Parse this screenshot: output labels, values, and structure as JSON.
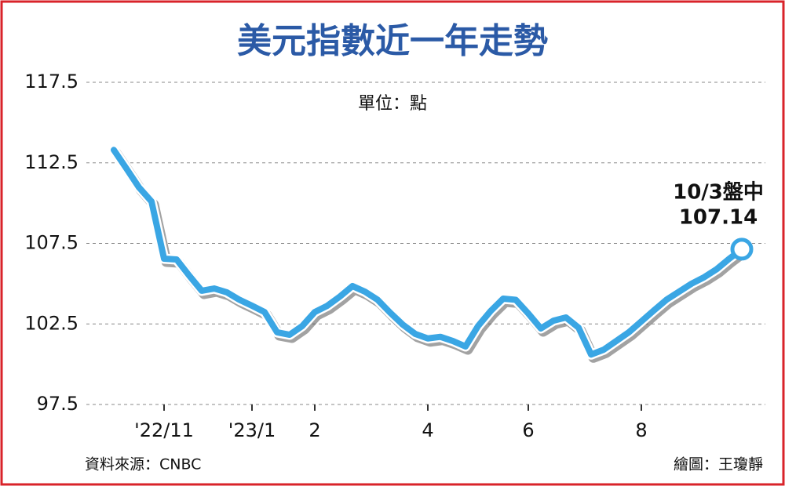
{
  "chart_data": {
    "type": "line",
    "title": "美元指數近一年走勢",
    "unit_label": "單位：點",
    "source": "資料來源：CNBC",
    "credit": "繪圖：王瓊靜",
    "annotation": "10/3盤中",
    "color": "#3aa6e4",
    "categories": [
      null,
      null,
      null,
      null,
      "'22/11",
      null,
      null,
      null,
      null,
      null,
      null,
      "'23/1",
      null,
      null,
      null,
      null,
      "2",
      null,
      null,
      null,
      null,
      null,
      null,
      null,
      null,
      "4",
      null,
      null,
      null,
      null,
      null,
      null,
      null,
      "6",
      null,
      null,
      null,
      null,
      null,
      null,
      null,
      null,
      "8",
      null,
      null,
      null,
      null,
      null,
      null,
      null,
      null
    ],
    "values": [
      113.3,
      112.15,
      110.98,
      110.1,
      106.55,
      106.5,
      105.5,
      104.56,
      104.7,
      104.46,
      104.0,
      103.63,
      103.24,
      101.98,
      101.83,
      102.37,
      103.24,
      103.63,
      104.2,
      104.85,
      104.5,
      104.0,
      103.2,
      102.46,
      101.88,
      101.6,
      101.7,
      101.44,
      101.1,
      102.37,
      103.3,
      104.07,
      104.0,
      103.15,
      102.22,
      102.7,
      102.9,
      102.27,
      100.6,
      100.9,
      101.44,
      101.98,
      102.66,
      103.34,
      104.0,
      104.5,
      105.0,
      105.4,
      105.9,
      106.55,
      107.14
    ],
    "ylim": [
      97.5,
      117.5
    ],
    "yticks": [
      97.5,
      102.5,
      107.5,
      112.5,
      117.5
    ],
    "grid": true
  }
}
